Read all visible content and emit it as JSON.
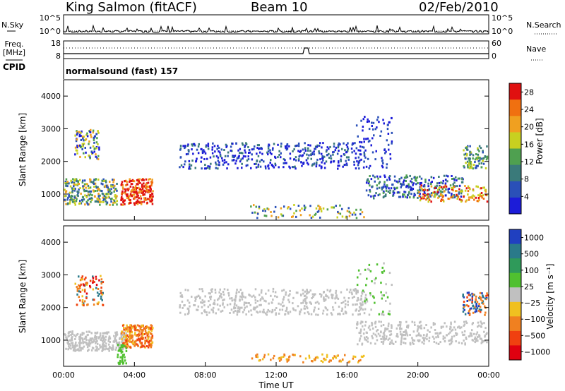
{
  "header": {
    "station": "King Salmon (fitACF)",
    "beam": "Beam 10",
    "date": "02/Feb/2010"
  },
  "top_panels": {
    "nsky_label": "N.Sky",
    "nsearch_label": "N.Search",
    "noise_ticks": [
      "10^5",
      "10^0"
    ],
    "freq_label": "Freq.",
    "freq_unit": "[MHz]",
    "freq_ticks": [
      "18",
      "8"
    ],
    "nave_label": "Nave",
    "nave_ticks": [
      "60",
      "0"
    ],
    "cpid_label": "CPID",
    "cpid_text": "normalsound (fast) 157"
  },
  "colors": {
    "power": [
      "#1c1cd8",
      "#2a50b8",
      "#3a7a7a",
      "#4fa050",
      "#c8d020",
      "#f0a020",
      "#f07010",
      "#e01010"
    ],
    "velocity": [
      "#2040c0",
      "#2a7a8a",
      "#2f9a5a",
      "#50c030",
      "#c0c0c0",
      "#f0c020",
      "#f08020",
      "#f04010",
      "#e00010"
    ]
  },
  "chart_data": [
    {
      "type": "heatmap",
      "name": "Power",
      "ylabel": "Slant Range [km]",
      "ylim": [
        200,
        4500
      ],
      "yticks": [
        "1000",
        "2000",
        "3000",
        "4000"
      ],
      "xlim_hours": [
        0,
        24
      ],
      "colorbar_label": "Power [dB]",
      "colorbar_ticks": [
        "4",
        "8",
        "12",
        "16",
        "20",
        "24",
        "28"
      ],
      "colorbar_range": [
        0,
        30
      ]
    },
    {
      "type": "heatmap",
      "name": "Velocity",
      "ylabel": "Slant Range [km]",
      "ylim": [
        200,
        4500
      ],
      "yticks": [
        "1000",
        "2000",
        "3000",
        "4000"
      ],
      "xlim_hours": [
        0,
        24
      ],
      "xticks": [
        "00:00",
        "04:00",
        "08:00",
        "12:00",
        "16:00",
        "20:00",
        "00:00"
      ],
      "xlabel": "Time UT",
      "colorbar_label": "Velocity [m s⁻¹]",
      "colorbar_ticks": [
        "1000",
        "500",
        "100",
        "25",
        "−25",
        "−100",
        "−500",
        "−1000"
      ]
    }
  ]
}
